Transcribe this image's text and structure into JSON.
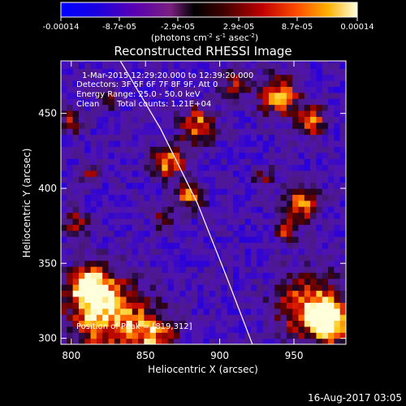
{
  "chart_data": {
    "type": "heatmap",
    "title": "Reconstructed RHESSI Image",
    "xlabel": "Heliocentric X (arcsec)",
    "ylabel": "Heliocentric Y (arcsec)",
    "xlim": [
      793,
      985
    ],
    "ylim": [
      296,
      485
    ],
    "xticks": [
      800,
      850,
      900,
      950
    ],
    "yticks": [
      300,
      350,
      400,
      450
    ],
    "colorbar": {
      "tick_labels": [
        "-0.00014",
        "-8.7e-05",
        "-2.9e-05",
        "2.9e-05",
        "8.7e-05",
        "0.00014"
      ],
      "range": [
        -0.00014,
        0.00014
      ],
      "units_label": "(photons cm",
      "units_sup1": "-2",
      "units_mid1": " s",
      "units_sup2": "-1",
      "units_mid2": " asec",
      "units_sup3": "-2",
      "units_end": ")"
    },
    "annotations": {
      "time": "1-Mar-2015 12:29:20.000 to 12:39:20.000",
      "detectors": "Detectors: 3F 5F 6F 7F 8F 9F, Att 0",
      "energy": "Energy Range: 25.0 - 50.0 keV",
      "method": "Clean",
      "counts": "Total counts: 1.21E+04",
      "peak": "Position of Peak = [819,312]"
    },
    "limb_curve": [
      [
        833,
        485
      ],
      [
        860,
        440
      ],
      [
        885,
        390
      ],
      [
        905,
        340
      ],
      [
        922,
        296
      ]
    ],
    "footer": "16-Aug-2017 03:05",
    "blobs": [
      [
        822,
        318,
        26,
        1.0
      ],
      [
        855,
        303,
        16,
        0.75
      ],
      [
        812,
        335,
        12,
        0.85
      ],
      [
        803,
        378,
        10,
        0.5
      ],
      [
        960,
        322,
        22,
        0.85
      ],
      [
        975,
        310,
        14,
        0.9
      ],
      [
        955,
        390,
        12,
        0.8
      ],
      [
        945,
        372,
        8,
        0.6
      ],
      [
        865,
        418,
        12,
        0.85
      ],
      [
        885,
        442,
        12,
        0.8
      ],
      [
        880,
        395,
        10,
        0.75
      ],
      [
        862,
        380,
        8,
        0.5
      ],
      [
        940,
        462,
        14,
        0.85
      ],
      [
        962,
        445,
        10,
        0.8
      ],
      [
        910,
        470,
        10,
        0.55
      ],
      [
        825,
        462,
        8,
        0.55
      ],
      [
        800,
        445,
        8,
        0.6
      ],
      [
        813,
        410,
        7,
        0.45
      ],
      [
        930,
        408,
        8,
        0.45
      ]
    ]
  }
}
